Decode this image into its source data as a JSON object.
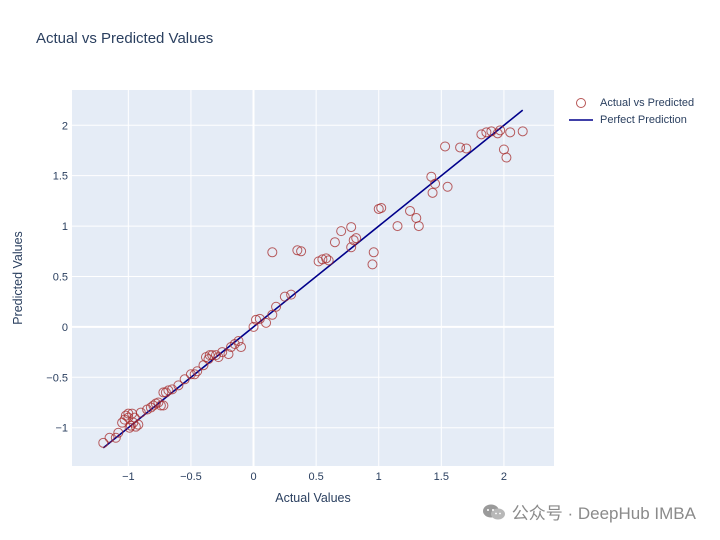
{
  "title": "Actual vs Predicted Values",
  "watermark": "公众号 · DeepHub IMBA",
  "colors": {
    "plot_bg": "#e5ecf6",
    "grid": "#ffffff",
    "marker": "#a52a2a",
    "line": "#00008b",
    "text": "#2a3f5f"
  },
  "chart_data": {
    "type": "scatter",
    "title": "Actual vs Predicted Values",
    "xlabel": "Actual Values",
    "ylabel": "Predicted Values",
    "xlim": [
      -1.45,
      2.4
    ],
    "ylim": [
      -1.38,
      2.35
    ],
    "x_ticks": [
      -1,
      -0.5,
      0,
      0.5,
      1,
      1.5,
      2
    ],
    "x_tick_labels": [
      "−1",
      "−0.5",
      "0",
      "0.5",
      "1",
      "1.5",
      "2"
    ],
    "y_ticks": [
      -1,
      -0.5,
      0,
      0.5,
      1,
      1.5,
      2
    ],
    "y_tick_labels": [
      "−1",
      "−0.5",
      "0",
      "0.5",
      "1",
      "1.5",
      "2"
    ],
    "grid": true,
    "legend_position": "top-right",
    "series": [
      {
        "name": "Actual vs Predicted",
        "mode": "markers",
        "marker": "open-circle",
        "x": [
          -1.2,
          -1.15,
          -1.1,
          -1.08,
          -1.05,
          -1.03,
          -1.02,
          -1.0,
          -1.0,
          -0.99,
          -0.98,
          -0.97,
          -0.96,
          -0.95,
          -0.94,
          -0.92,
          -0.9,
          -0.85,
          -0.82,
          -0.8,
          -0.78,
          -0.76,
          -0.74,
          -0.72,
          -0.72,
          -0.7,
          -0.68,
          -0.65,
          -0.6,
          -0.55,
          -0.5,
          -0.47,
          -0.45,
          -0.4,
          -0.38,
          -0.36,
          -0.35,
          -0.33,
          -0.3,
          -0.28,
          -0.25,
          -0.2,
          -0.18,
          -0.15,
          -0.12,
          -0.1,
          0.0,
          0.02,
          0.05,
          0.1,
          0.15,
          0.18,
          0.25,
          0.3,
          0.35,
          0.38,
          0.15,
          0.52,
          0.55,
          0.58,
          0.6,
          0.65,
          0.7,
          0.78,
          0.8,
          0.82,
          0.78,
          0.95,
          0.96,
          1.0,
          1.02,
          1.15,
          1.25,
          1.3,
          1.32,
          1.42,
          1.45,
          1.43,
          1.53,
          1.55,
          1.65,
          1.7,
          1.82,
          1.86,
          1.9,
          1.95,
          1.97,
          2.0,
          2.02,
          2.05,
          2.15
        ],
        "y": [
          -1.15,
          -1.1,
          -1.1,
          -1.05,
          -0.95,
          -0.92,
          -0.88,
          -0.9,
          -0.86,
          -1.0,
          -0.98,
          -0.86,
          -0.95,
          -0.9,
          -0.99,
          -0.97,
          -0.85,
          -0.82,
          -0.8,
          -0.78,
          -0.76,
          -0.75,
          -0.78,
          -0.65,
          -0.78,
          -0.65,
          -0.63,
          -0.62,
          -0.58,
          -0.52,
          -0.47,
          -0.47,
          -0.44,
          -0.38,
          -0.3,
          -0.32,
          -0.28,
          -0.28,
          -0.28,
          -0.3,
          -0.25,
          -0.27,
          -0.2,
          -0.17,
          -0.14,
          -0.2,
          0.0,
          0.07,
          0.08,
          0.04,
          0.12,
          0.2,
          0.3,
          0.32,
          0.76,
          0.75,
          0.74,
          0.65,
          0.67,
          0.68,
          0.66,
          0.84,
          0.95,
          0.99,
          0.86,
          0.88,
          0.79,
          0.62,
          0.74,
          1.17,
          1.18,
          1.0,
          1.15,
          1.08,
          1.0,
          1.49,
          1.42,
          1.33,
          1.79,
          1.39,
          1.78,
          1.77,
          1.91,
          1.93,
          1.94,
          1.92,
          1.95,
          1.76,
          1.68,
          1.93,
          1.94
        ]
      },
      {
        "name": "Perfect Prediction",
        "mode": "lines",
        "x": [
          -1.2,
          2.15
        ],
        "y": [
          -1.2,
          2.15
        ]
      }
    ]
  }
}
